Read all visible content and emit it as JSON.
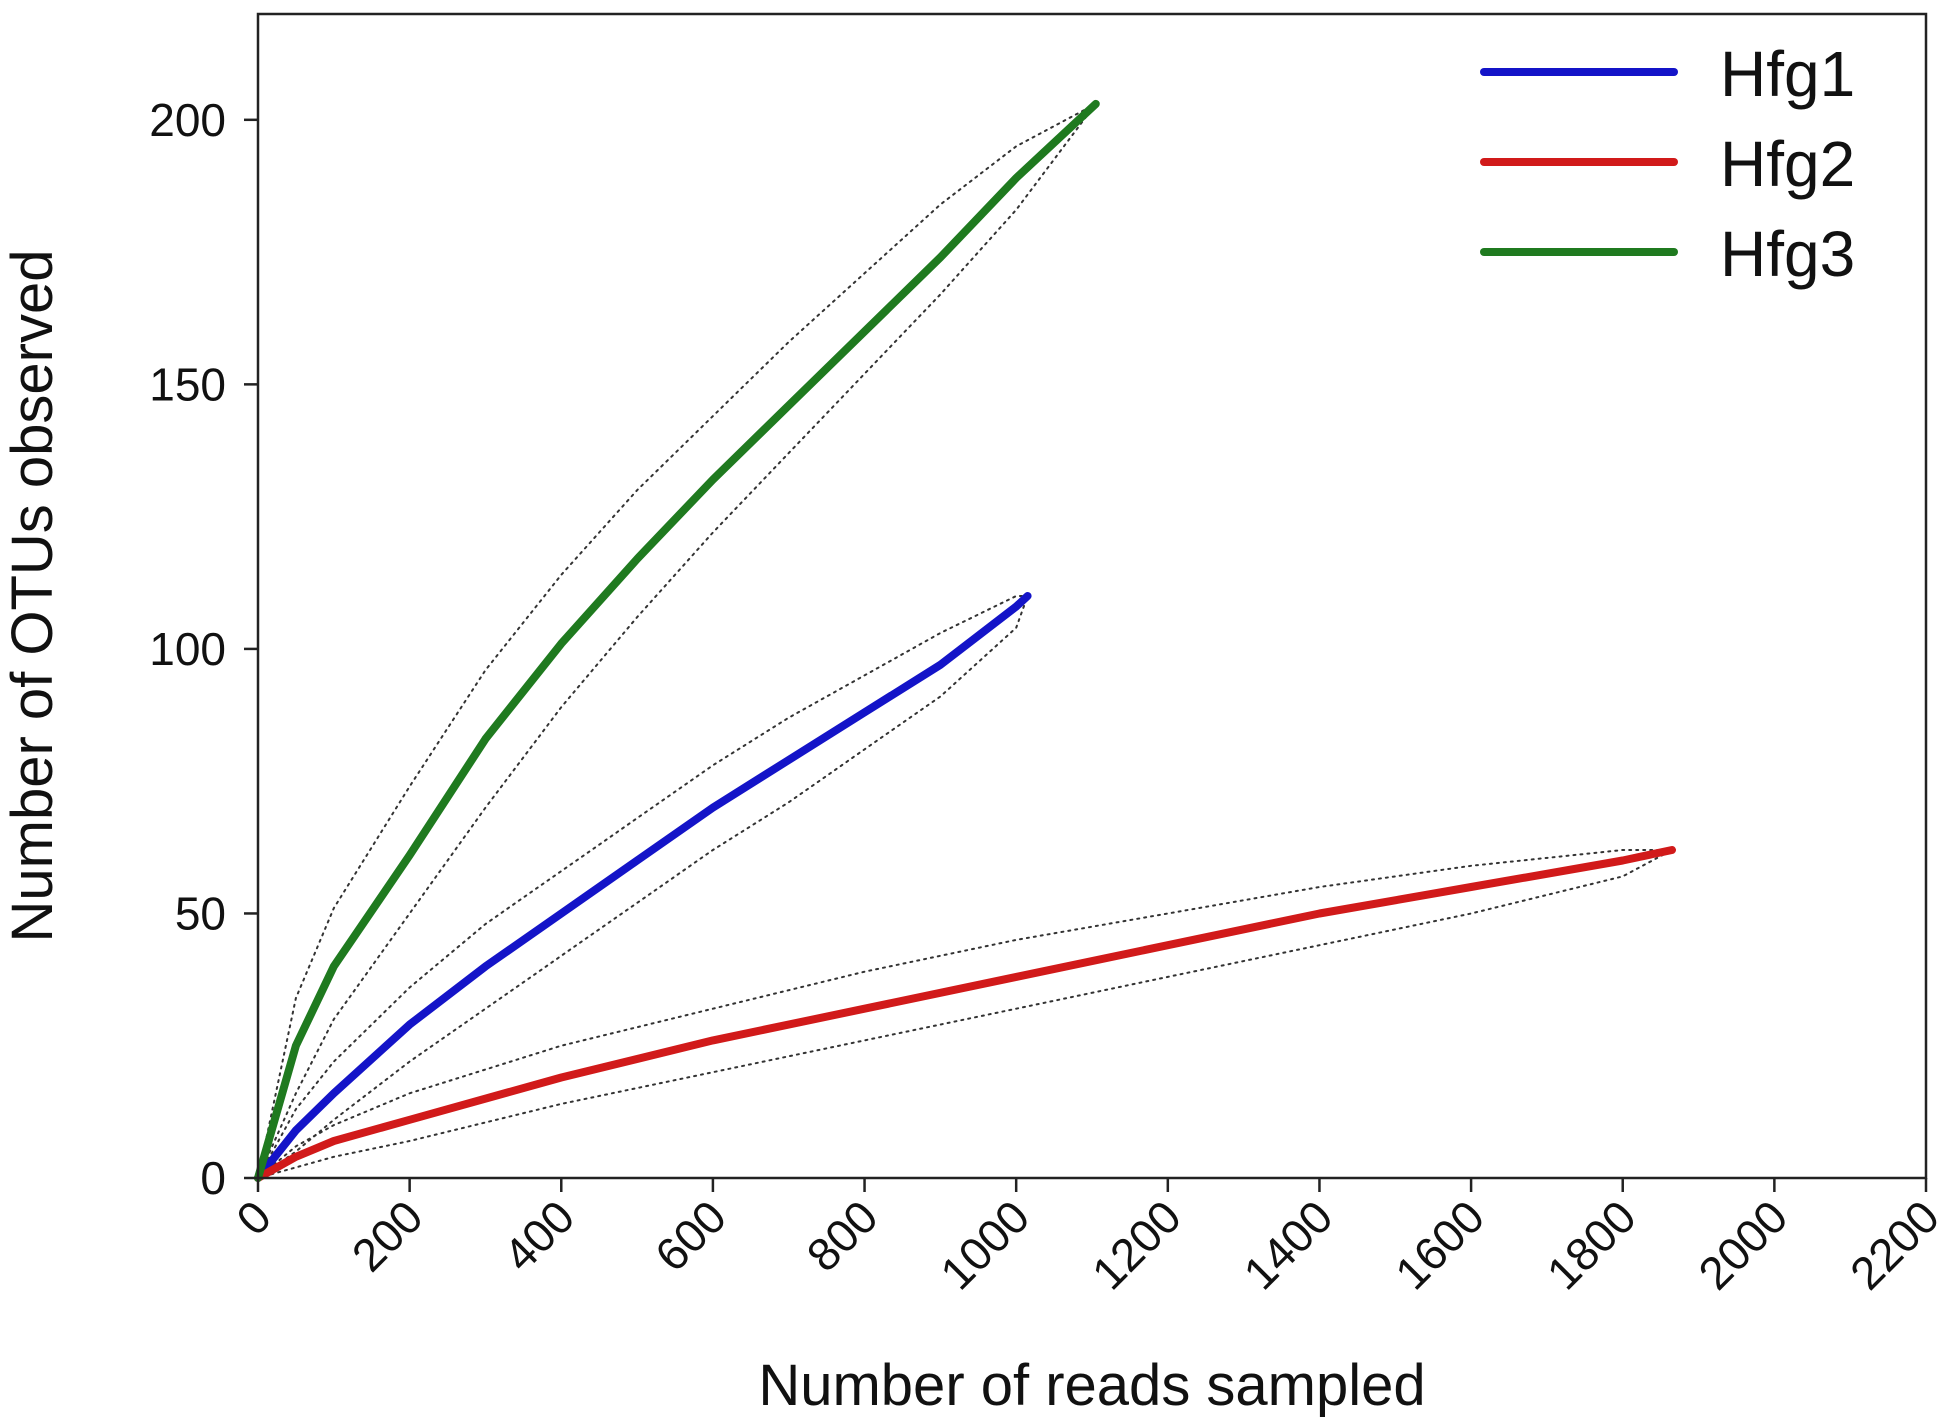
{
  "chart_data": {
    "type": "line",
    "title": "",
    "xlabel": "Number of reads sampled",
    "ylabel": "Number of OTUs observed",
    "xlim": [
      0,
      2200
    ],
    "ylim": [
      0,
      200
    ],
    "xticks": [
      0,
      200,
      400,
      600,
      800,
      1000,
      1200,
      1400,
      1600,
      1800,
      2000,
      2200
    ],
    "yticks": [
      0,
      50,
      100,
      150,
      200
    ],
    "grid": false,
    "legend_position": "top-right",
    "series": [
      {
        "name": "Hfg1",
        "color": "#1414c8",
        "x": [
          0,
          50,
          100,
          200,
          300,
          400,
          500,
          600,
          700,
          800,
          900,
          1000,
          1015
        ],
        "y": [
          0,
          9,
          16,
          29,
          40,
          50,
          60,
          70,
          79,
          88,
          97,
          108,
          110
        ],
        "ci_lower": [
          0,
          5,
          11,
          22,
          32,
          42,
          52,
          62,
          71,
          81,
          91,
          104,
          110
        ],
        "ci_upper": [
          0,
          13,
          22,
          36,
          48,
          58,
          68,
          78,
          87,
          95,
          103,
          110,
          110
        ]
      },
      {
        "name": "Hfg2",
        "color": "#d11a1a",
        "x": [
          0,
          50,
          100,
          200,
          400,
          600,
          800,
          1000,
          1200,
          1400,
          1600,
          1800,
          1865
        ],
        "y": [
          0,
          4,
          7,
          11,
          19,
          26,
          32,
          38,
          44,
          50,
          55,
          60,
          62
        ],
        "ci_lower": [
          0,
          2,
          4,
          7,
          14,
          20,
          26,
          32,
          38,
          44,
          50,
          57,
          62
        ],
        "ci_upper": [
          0,
          6,
          10,
          16,
          25,
          32,
          39,
          45,
          50,
          55,
          59,
          62,
          62
        ]
      },
      {
        "name": "Hfg3",
        "color": "#1f7a1f",
        "x": [
          0,
          50,
          100,
          200,
          300,
          400,
          500,
          600,
          700,
          800,
          900,
          1000,
          1105
        ],
        "y": [
          0,
          25,
          40,
          61,
          83,
          101,
          117,
          132,
          146,
          160,
          174,
          189,
          203
        ],
        "ci_lower": [
          0,
          16,
          30,
          50,
          70,
          89,
          106,
          122,
          137,
          152,
          167,
          183,
          203
        ],
        "ci_upper": [
          0,
          34,
          51,
          74,
          96,
          114,
          130,
          144,
          158,
          171,
          184,
          195,
          203
        ]
      }
    ]
  }
}
